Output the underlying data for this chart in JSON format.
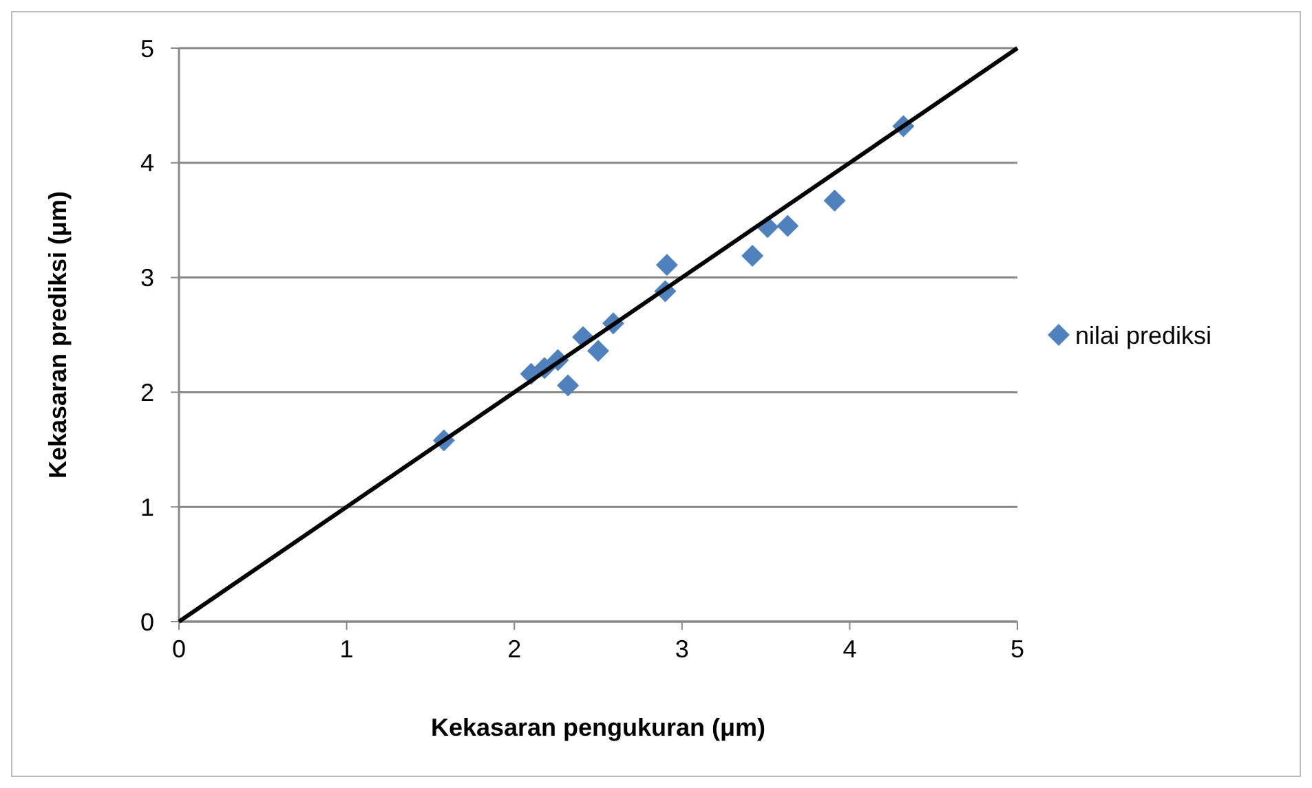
{
  "chart_data": {
    "type": "scatter",
    "xlabel": "Kekasaran pengukuran (μm)",
    "ylabel": "Kekasaran prediksi (μm)",
    "xlim": [
      0,
      5
    ],
    "ylim": [
      0,
      5
    ],
    "xticks": [
      0,
      1,
      2,
      3,
      4,
      5
    ],
    "yticks": [
      0,
      1,
      2,
      3,
      4,
      5
    ],
    "grid": "y",
    "legend": "right",
    "marker": "diamond",
    "series": [
      {
        "name": "nilai prediksi",
        "color": "#4f81bd",
        "x": [
          1.58,
          2.1,
          2.18,
          2.26,
          2.32,
          2.41,
          2.5,
          2.59,
          2.9,
          2.91,
          3.42,
          3.51,
          3.63,
          3.91,
          4.32
        ],
        "values": [
          1.58,
          2.16,
          2.21,
          2.28,
          2.06,
          2.48,
          2.36,
          2.6,
          2.88,
          3.11,
          3.19,
          3.44,
          3.45,
          3.67,
          4.32
        ]
      },
      {
        "type": "line",
        "color": "#000000",
        "x": [
          0,
          5
        ],
        "values": [
          0,
          5
        ],
        "marker": "none"
      }
    ]
  }
}
